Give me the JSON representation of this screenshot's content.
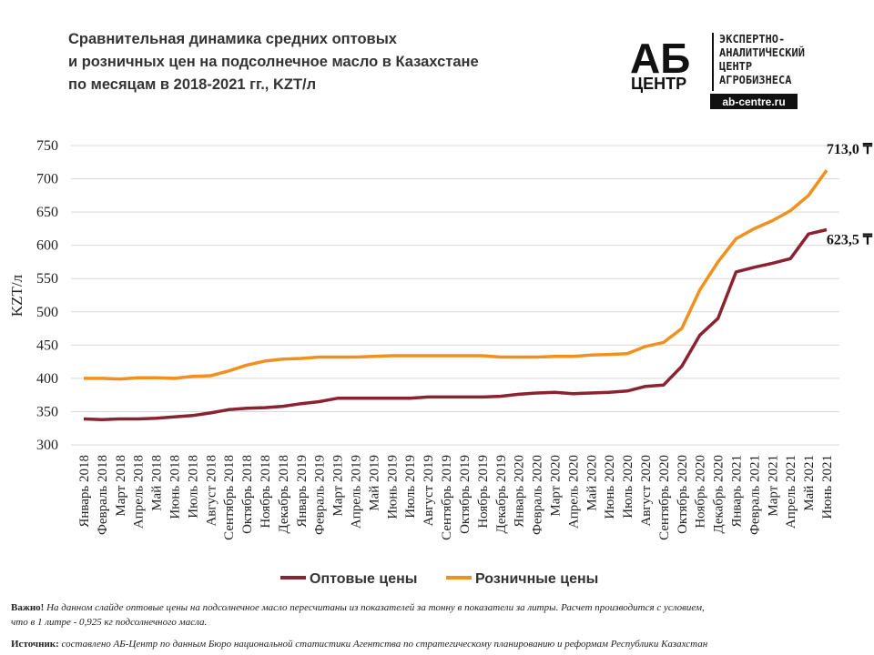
{
  "chart_data": {
    "type": "line",
    "title": [
      "Сравнительная динамика средних оптовых",
      "и розничных цен на подсолнечное  масло в Казахстане",
      "по месяцам в 2018-2021 гг., KZT/л"
    ],
    "y_label": "KZT/л",
    "categories": [
      "Январь 2018",
      "Февраль 2018",
      "Март 2018",
      "Апрель 2018",
      "Май 2018",
      "Июнь 2018",
      "Июль 2018",
      "Август 2018",
      "Сентябрь 2018",
      "Октябрь 2018",
      "Ноябрь 2018",
      "Декабрь 2018",
      "Январь 2019",
      "Февраль 2019",
      "Март 2019",
      "Апрель 2019",
      "Май 2019",
      "Июнь 2019",
      "Июль 2019",
      "Август 2019",
      "Сентябрь 2019",
      "Октябрь 2019",
      "Ноябрь 2019",
      "Декабрь 2019",
      "Январь 2020",
      "Февраль 2020",
      "Март 2020",
      "Апрель 2020",
      "Май 2020",
      "Июнь 2020",
      "Июль 2020",
      "Август 2020",
      "Сентябрь 2020",
      "Октябрь 2020",
      "Ноябрь 2020",
      "Декабрь 2020",
      "Январь 2021",
      "Февраль 2021",
      "Март 2021",
      "Апрель 2021",
      "Май 2021",
      "Июнь 2021"
    ],
    "series": [
      {
        "name": "Оптовые цены",
        "color": "#8b2232",
        "values": [
          339,
          338,
          339,
          339,
          340,
          342,
          344,
          348,
          353,
          355,
          356,
          358,
          362,
          365,
          370,
          370,
          370,
          370,
          370,
          372,
          372,
          372,
          372,
          373,
          376,
          378,
          379,
          377,
          378,
          379,
          381,
          388,
          390,
          418,
          465,
          490,
          560,
          567,
          573,
          580,
          617,
          623.5
        ],
        "value_labels": [
          null,
          null,
          null,
          null,
          null,
          null,
          null,
          null,
          null,
          null,
          null,
          null,
          null,
          null,
          null,
          null,
          null,
          null,
          null,
          null,
          null,
          null,
          null,
          null,
          null,
          null,
          null,
          null,
          null,
          null,
          null,
          null,
          null,
          null,
          null,
          null,
          null,
          null,
          null,
          null,
          null,
          "623,5 ₸"
        ]
      },
      {
        "name": "Розничные цены",
        "color": "#f0901e",
        "values": [
          400,
          400,
          399,
          401,
          401,
          400,
          403,
          404,
          411,
          420,
          426,
          429,
          430,
          432,
          432,
          432,
          433,
          434,
          434,
          434,
          434,
          434,
          434,
          432,
          432,
          432,
          433,
          433,
          435,
          436,
          437,
          448,
          454,
          475,
          533,
          575,
          610,
          625,
          637,
          652,
          675,
          713
        ],
        "value_labels": [
          null,
          null,
          null,
          null,
          null,
          null,
          null,
          null,
          null,
          null,
          null,
          null,
          null,
          null,
          null,
          null,
          null,
          null,
          null,
          null,
          null,
          null,
          null,
          null,
          null,
          null,
          null,
          null,
          null,
          null,
          null,
          null,
          null,
          null,
          null,
          null,
          null,
          null,
          null,
          null,
          null,
          "713,0 ₸"
        ]
      }
    ],
    "ylim": [
      300,
      750
    ],
    "yticks": [
      300,
      350,
      400,
      450,
      500,
      550,
      600,
      650,
      700,
      750
    ],
    "grid": true
  },
  "logo": {
    "mark": "АБ",
    "mark_sub": "ЦЕНТР",
    "lines": [
      "ЭКСПЕРТНО-",
      "АНАЛИТИЧЕСКИЙ",
      "ЦЕНТР",
      "АГРОБИЗНЕСА"
    ],
    "url": "ab-centre.ru"
  },
  "notes": {
    "important_label": "Важно!",
    "important_text": "На данном слайде оптовые цены на подсолнечное масло пересчитаны из показателей за тонну в показатели за литры. Расчет производится с условием,",
    "important_text2": "что в 1 литре - 0,925 кг подсолнечного масла.",
    "source_label": "Источник:",
    "source_text": "составлено АБ-Центр по данным Бюро национальной статистики Агентства по стратегическому планированию и реформам Республики  Казахстан"
  }
}
